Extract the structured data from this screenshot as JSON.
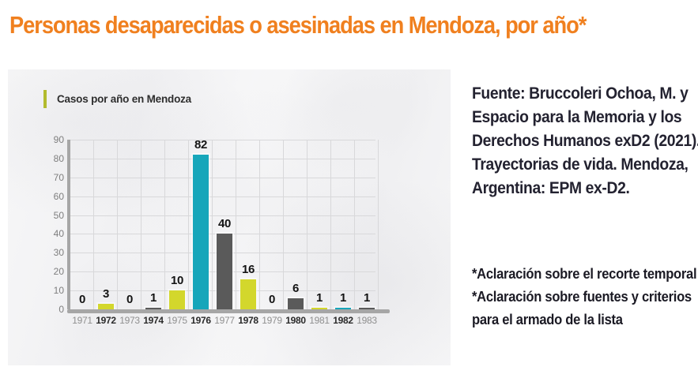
{
  "page": {
    "title": "Personas desaparecidas o asesinadas en Mendoza, por año*"
  },
  "legend": {
    "label": "Casos por año en Mendoza"
  },
  "source": {
    "lines": [
      "Fuente: Bruccoleri Ochoa, M. y",
      "Espacio para la Memoria y los",
      "Derechos Humanos exD2 (2021).",
      "Trayectorias de vida. Mendoza,",
      "Argentina: EPM ex-D2."
    ]
  },
  "footnotes": {
    "lines": [
      "*Aclaración sobre el recorte temporal",
      "*Aclaración sobre fuentes y criterios",
      "para el armado de la lista"
    ]
  },
  "colors": {
    "title": "#f0801f",
    "bar_yellow": "#d3d72c",
    "bar_teal": "#17a6ba",
    "bar_gray": "#5a5a5a",
    "axis": "#a6a6a6",
    "grid": "#d8d8da",
    "ytick_label": "#7e7e7e",
    "year_muted": "#8f8f8f",
    "year_bold": "#2b2b2b",
    "value_label": "#141414",
    "legend_swatch": "#b2bb2e"
  },
  "chart_data": {
    "type": "bar",
    "title": "Casos por año en Mendoza",
    "categories": [
      "1971",
      "1972",
      "1973",
      "1974",
      "1975",
      "1976",
      "1977",
      "1978",
      "1979",
      "1980",
      "1981",
      "1982",
      "1983"
    ],
    "values": [
      0,
      3,
      0,
      1,
      10,
      82,
      40,
      16,
      0,
      6,
      1,
      1,
      1
    ],
    "bar_colors": [
      null,
      "#d3d72c",
      null,
      "#5a5a5a",
      "#d3d72c",
      "#17a6ba",
      "#5a5a5a",
      "#d3d72c",
      null,
      "#5a5a5a",
      "#d3d72c",
      "#17a6ba",
      "#5a5a5a"
    ],
    "bold_categories": [
      "1972",
      "1974",
      "1976",
      "1978",
      "1980",
      "1982"
    ],
    "xlabel": "",
    "ylabel": "",
    "ylim": [
      0,
      90
    ],
    "yticks": [
      0,
      10,
      20,
      30,
      40,
      50,
      60,
      70,
      80,
      90
    ],
    "grid": true,
    "legend_position": "top-left",
    "value_labels": true
  }
}
